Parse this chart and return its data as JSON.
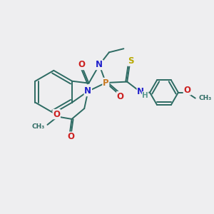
{
  "bg_color": "#eeeef0",
  "atom_colors": {
    "C": "#2d6b63",
    "N": "#2020cc",
    "O": "#cc2020",
    "P": "#c87820",
    "S": "#b8a800",
    "H": "#5a9a90"
  },
  "bond_color": "#2d6b63",
  "lw": 1.4
}
